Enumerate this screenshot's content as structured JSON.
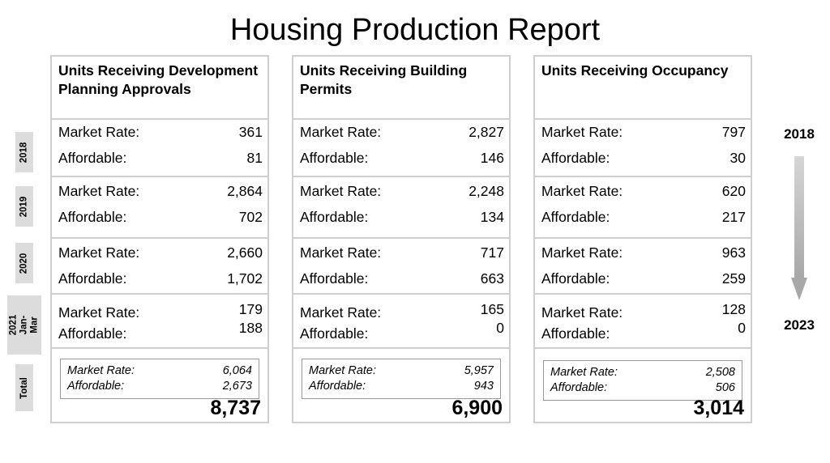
{
  "title": "Housing Production Report",
  "panels": [
    {
      "header": "Units Receiving Development Planning Approvals",
      "years": [
        {
          "market_label": "Market Rate:",
          "market": "361",
          "affordable_label": "Affordable:",
          "affordable": "81"
        },
        {
          "market_label": "Market Rate:",
          "market": "2,864",
          "affordable_label": "Affordable:",
          "affordable": "702"
        },
        {
          "market_label": "Market Rate:",
          "market": "2,660",
          "affordable_label": "Affordable:",
          "affordable": "1,702"
        },
        {
          "market_label": "Market Rate:",
          "market": "179",
          "affordable_label": "Affordable:",
          "affordable": "188"
        }
      ],
      "total": {
        "market_label": "Market Rate:",
        "market": "6,064",
        "affordable_label": "Affordable:",
        "affordable": "2,673",
        "grand": "8,737"
      }
    },
    {
      "header": "Units Receiving Building Permits",
      "years": [
        {
          "market_label": "Market Rate:",
          "market": "2,827",
          "affordable_label": "Affordable:",
          "affordable": "146"
        },
        {
          "market_label": "Market Rate:",
          "market": "2,248",
          "affordable_label": "Affordable:",
          "affordable": "134"
        },
        {
          "market_label": "Market Rate:",
          "market": "717",
          "affordable_label": "Affordable:",
          "affordable": "663"
        },
        {
          "market_label": "Market Rate:",
          "market": "165",
          "affordable_label": "Affordable:",
          "affordable": "0"
        }
      ],
      "total": {
        "market_label": "Market Rate:",
        "market": "5,957",
        "affordable_label": "Affordable:",
        "affordable": "943",
        "grand": "6,900"
      }
    },
    {
      "header": "Units Receiving Occupancy",
      "years": [
        {
          "market_label": "Market Rate:",
          "market": "797",
          "affordable_label": "Affordable:",
          "affordable": "30"
        },
        {
          "market_label": "Market Rate:",
          "market": "620",
          "affordable_label": "Affordable:",
          "affordable": "217"
        },
        {
          "market_label": "Market Rate:",
          "market": "963",
          "affordable_label": "Affordable:",
          "affordable": "259"
        },
        {
          "market_label": "Market Rate:",
          "market": "128",
          "affordable_label": "Affordable:",
          "affordable": "0"
        }
      ],
      "total": {
        "market_label": "Market Rate:",
        "market": "2,508",
        "affordable_label": "Affordable:",
        "affordable": "506",
        "grand": "3,014"
      }
    }
  ],
  "row_labels": [
    "2018",
    "2019",
    "2020",
    "2021 Jan-Mar",
    "Total"
  ],
  "timeline": {
    "start": "2018",
    "end": "2023",
    "arrow_icon": "down-arrow-icon"
  }
}
